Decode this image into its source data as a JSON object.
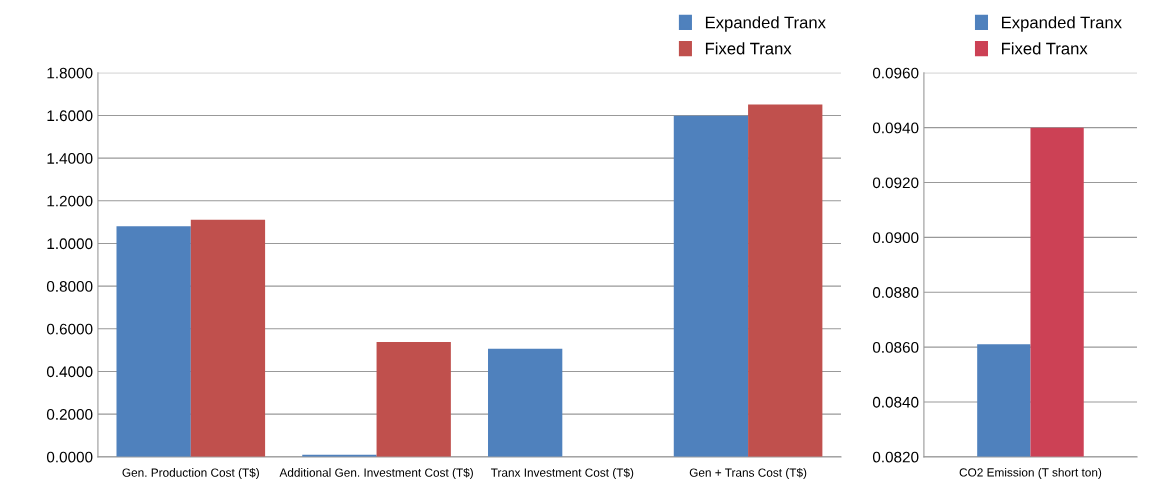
{
  "chart_data": [
    {
      "type": "bar",
      "categories": [
        "Gen. Production Cost (T$)",
        "Additional Gen. Investment Cost (T$)",
        "Tranx Investment Cost (T$)",
        "Gen + Trans Cost (T$)"
      ],
      "series": [
        {
          "name": "Expanded Tranx",
          "color": "#4f81bd",
          "values": [
            1.081,
            0.01,
            0.506,
            1.599
          ]
        },
        {
          "name": "Fixed Tranx",
          "color": "#c0504d",
          "values": [
            1.111,
            0.538,
            null,
            1.651
          ]
        }
      ],
      "ylim": [
        0,
        1.8
      ],
      "yticks": [
        {
          "value": 0,
          "label": "0.0000"
        },
        {
          "value": 0.2,
          "label": "0.2000"
        },
        {
          "value": 0.4,
          "label": "0.4000"
        },
        {
          "value": 0.6,
          "label": "0.6000"
        },
        {
          "value": 0.8,
          "label": "0.8000"
        },
        {
          "value": 1.0,
          "label": "1.0000"
        },
        {
          "value": 1.2,
          "label": "1.2000"
        },
        {
          "value": 1.4,
          "label": "1.4000"
        },
        {
          "value": 1.6,
          "label": "1.6000"
        },
        {
          "value": 1.8,
          "label": "1.8000"
        }
      ],
      "grid": "y",
      "legend": "top right"
    },
    {
      "type": "bar",
      "categories": [
        "CO2 Emission (T short ton)"
      ],
      "series": [
        {
          "name": "Expanded Tranx",
          "color": "#4f81bd",
          "values": [
            0.0861
          ]
        },
        {
          "name": "Fixed Tranx",
          "color": "#cc4155",
          "values": [
            0.094
          ]
        }
      ],
      "ylim": [
        0.082,
        0.096
      ],
      "yticks": [
        {
          "value": 0.082,
          "label": "0.0820"
        },
        {
          "value": 0.084,
          "label": "0.0840"
        },
        {
          "value": 0.086,
          "label": "0.0860"
        },
        {
          "value": 0.088,
          "label": "0.0880"
        },
        {
          "value": 0.09,
          "label": "0.0900"
        },
        {
          "value": 0.092,
          "label": "0.0920"
        },
        {
          "value": 0.094,
          "label": "0.0940"
        },
        {
          "value": 0.096,
          "label": "0.0960"
        }
      ],
      "grid": "y",
      "legend": "top right"
    }
  ]
}
